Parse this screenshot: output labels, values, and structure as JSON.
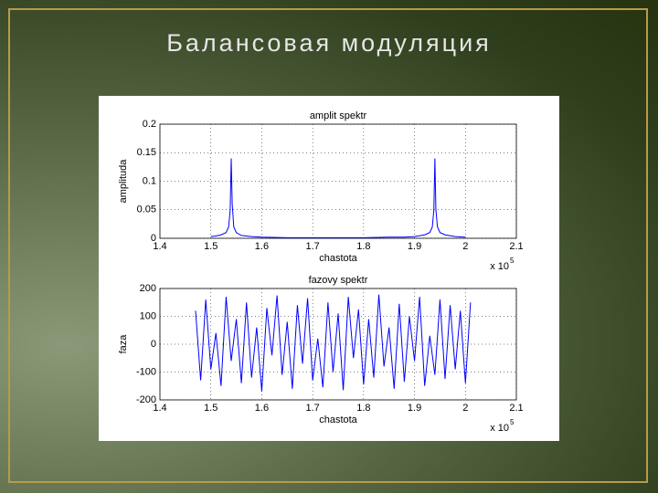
{
  "slide": {
    "title": "Балансовая модуляция"
  },
  "chart_data": [
    {
      "type": "line",
      "title": "amplit spektr",
      "xlabel": "chastota",
      "ylabel": "amplituda",
      "x_scale_label": "x 10",
      "x_scale_exponent": "5",
      "xlim": [
        1.4,
        2.1
      ],
      "xticks": [
        1.4,
        1.5,
        1.6,
        1.7,
        1.8,
        1.9,
        2,
        2.1
      ],
      "ylim": [
        0,
        0.2
      ],
      "yticks": [
        0,
        0.05,
        0.1,
        0.15,
        0.2
      ],
      "grid": true,
      "x": [
        1.5,
        1.51,
        1.52,
        1.53,
        1.535,
        1.538,
        1.54,
        1.542,
        1.545,
        1.55,
        1.56,
        1.58,
        1.6,
        1.65,
        1.7,
        1.75,
        1.8,
        1.85,
        1.88,
        1.9,
        1.92,
        1.93,
        1.935,
        1.938,
        1.94,
        1.942,
        1.945,
        1.95,
        1.96,
        1.98,
        2.0
      ],
      "series": [
        {
          "color": "#0000ff",
          "values": [
            0.003,
            0.004,
            0.006,
            0.01,
            0.02,
            0.05,
            0.14,
            0.06,
            0.02,
            0.01,
            0.005,
            0.003,
            0.002,
            0.001,
            0.001,
            0.001,
            0.001,
            0.002,
            0.002,
            0.003,
            0.006,
            0.01,
            0.02,
            0.05,
            0.14,
            0.05,
            0.02,
            0.01,
            0.006,
            0.003,
            0.002
          ]
        }
      ]
    },
    {
      "type": "line",
      "title": "fazovy spektr",
      "xlabel": "chastota",
      "ylabel": "faza",
      "x_scale_label": "x 10",
      "x_scale_exponent": "5",
      "xlim": [
        1.4,
        2.1
      ],
      "xticks": [
        1.4,
        1.5,
        1.6,
        1.7,
        1.8,
        1.9,
        2,
        2.1
      ],
      "ylim": [
        -200,
        200
      ],
      "yticks": [
        -200,
        -100,
        0,
        100,
        200
      ],
      "grid": true,
      "x": [
        1.47,
        1.48,
        1.49,
        1.5,
        1.51,
        1.52,
        1.53,
        1.54,
        1.55,
        1.56,
        1.57,
        1.58,
        1.59,
        1.6,
        1.61,
        1.62,
        1.63,
        1.64,
        1.65,
        1.66,
        1.67,
        1.68,
        1.69,
        1.7,
        1.71,
        1.72,
        1.73,
        1.74,
        1.75,
        1.76,
        1.77,
        1.78,
        1.79,
        1.8,
        1.81,
        1.82,
        1.83,
        1.84,
        1.85,
        1.86,
        1.87,
        1.88,
        1.89,
        1.9,
        1.91,
        1.92,
        1.93,
        1.94,
        1.95,
        1.96,
        1.97,
        1.98,
        1.99,
        2.0,
        2.01
      ],
      "series": [
        {
          "color": "#0000ff",
          "values": [
            120,
            -130,
            160,
            -90,
            40,
            -150,
            170,
            -60,
            90,
            -140,
            150,
            -120,
            60,
            -170,
            130,
            -40,
            175,
            -110,
            80,
            -160,
            140,
            -70,
            165,
            -130,
            20,
            -155,
            150,
            -100,
            110,
            -165,
            170,
            -50,
            125,
            -145,
            90,
            -120,
            178,
            -80,
            60,
            -160,
            145,
            -135,
            100,
            -60,
            170,
            -150,
            30,
            -110,
            160,
            -125,
            140,
            -90,
            120,
            -140,
            150
          ]
        }
      ]
    }
  ]
}
